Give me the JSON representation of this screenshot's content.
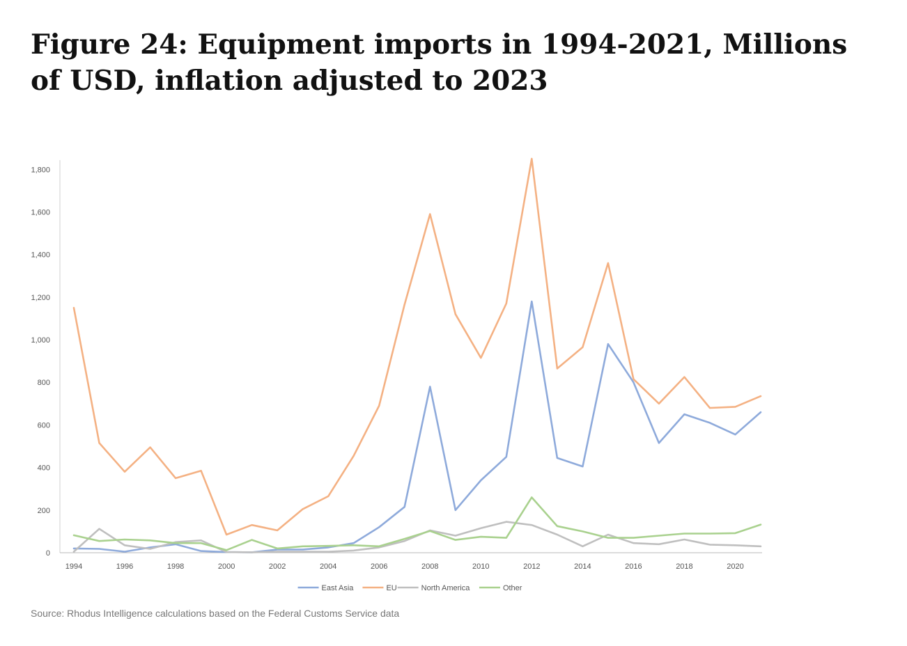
{
  "figure": {
    "title": "Figure 24: Equipment imports in 1994-2021, Millions of USD, inflation adjusted to 2023",
    "source": "Source: Rhodus Intelligence calculations based on the Federal Customs Service data"
  },
  "chart_data": {
    "type": "line",
    "title": "Figure 24: Equipment imports in 1994-2021, Millions of USD, inflation adjusted to 2023",
    "xlabel": "",
    "ylabel": "",
    "x": [
      1994,
      1995,
      1996,
      1997,
      1998,
      1999,
      2000,
      2001,
      2002,
      2003,
      2004,
      2005,
      2006,
      2007,
      2008,
      2009,
      2010,
      2011,
      2012,
      2013,
      2014,
      2015,
      2016,
      2017,
      2018,
      2019,
      2020,
      2021
    ],
    "x_tick_labels": [
      "1994",
      "1996",
      "1998",
      "2000",
      "2002",
      "2004",
      "2006",
      "2008",
      "2010",
      "2012",
      "2014",
      "2016",
      "2018",
      "2020"
    ],
    "y_tick_labels": [
      "0",
      "200",
      "400",
      "600",
      "800",
      "1,000",
      "1,200",
      "1,400",
      "1,600",
      "1,800"
    ],
    "ylim": [
      0,
      1850
    ],
    "legend_position": "bottom",
    "grid": false,
    "series": [
      {
        "name": "East Asia",
        "color": "#8eaadb",
        "values": [
          20,
          18,
          5,
          25,
          40,
          8,
          3,
          2,
          15,
          15,
          25,
          45,
          120,
          215,
          780,
          200,
          340,
          450,
          1180,
          445,
          405,
          980,
          800,
          515,
          650,
          610,
          555,
          660
        ]
      },
      {
        "name": "EU",
        "color": "#f4b183",
        "values": [
          1150,
          515,
          380,
          495,
          350,
          385,
          85,
          130,
          105,
          205,
          265,
          455,
          690,
          1165,
          1590,
          1120,
          915,
          1170,
          1850,
          865,
          965,
          1360,
          815,
          700,
          825,
          680,
          685,
          735
        ]
      },
      {
        "name": "North America",
        "color": "#bfbfbf",
        "values": [
          5,
          112,
          35,
          18,
          50,
          58,
          3,
          2,
          5,
          5,
          5,
          10,
          25,
          55,
          105,
          80,
          115,
          145,
          130,
          85,
          30,
          85,
          45,
          40,
          62,
          38,
          35,
          30
        ]
      },
      {
        "name": "Other",
        "color": "#a9d18e",
        "values": [
          82,
          55,
          62,
          58,
          45,
          45,
          12,
          60,
          20,
          30,
          32,
          35,
          30,
          65,
          102,
          60,
          75,
          70,
          260,
          125,
          100,
          70,
          70,
          80,
          90,
          90,
          92,
          132
        ]
      }
    ]
  }
}
